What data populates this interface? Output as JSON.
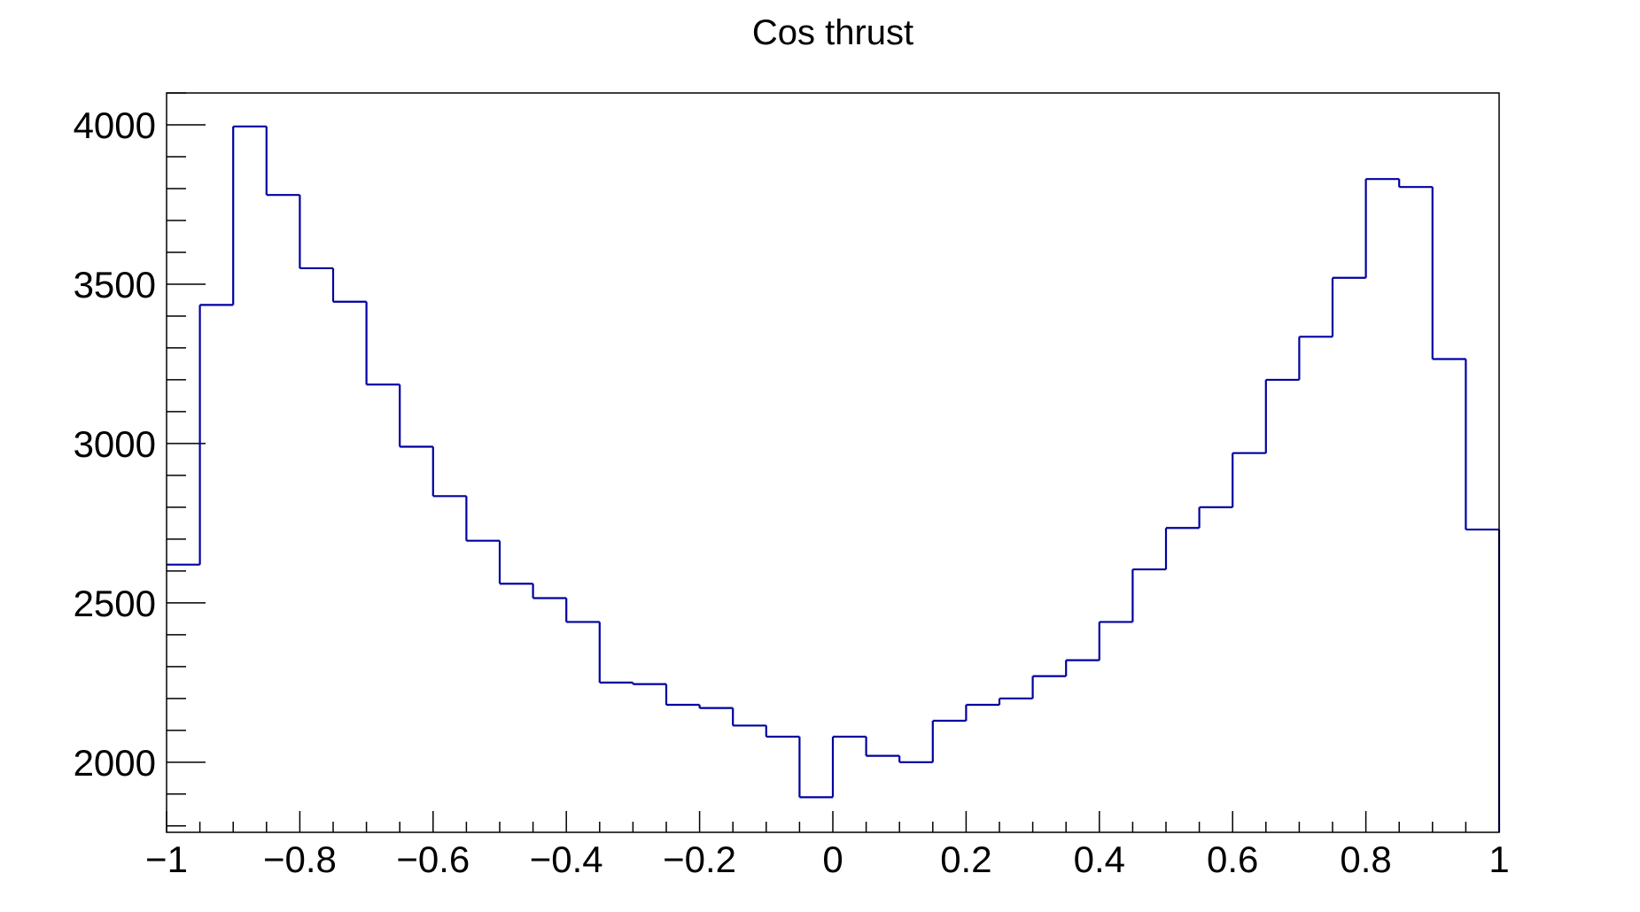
{
  "chart_data": {
    "type": "histogram",
    "title": "Cos thrust",
    "xlabel": "",
    "ylabel": "",
    "xlim": [
      -1,
      1
    ],
    "ylim": [
      1780,
      4100
    ],
    "bin_edges": [
      -1,
      -0.95,
      -0.9,
      -0.85,
      -0.8,
      -0.75,
      -0.7,
      -0.65,
      -0.6,
      -0.55,
      -0.5,
      -0.45,
      -0.4,
      -0.35,
      -0.3,
      -0.25,
      -0.2,
      -0.15,
      -0.1,
      -0.05,
      0,
      0.05,
      0.1,
      0.15,
      0.2,
      0.25,
      0.3,
      0.35,
      0.4,
      0.45,
      0.5,
      0.55,
      0.6,
      0.65,
      0.7,
      0.75,
      0.8,
      0.85,
      0.9,
      0.95,
      1
    ],
    "values": [
      2620,
      3435,
      3995,
      3780,
      3550,
      3445,
      3185,
      2990,
      2835,
      2695,
      2560,
      2515,
      2440,
      2250,
      2245,
      2180,
      2170,
      2115,
      2080,
      1890,
      2080,
      2020,
      2000,
      2130,
      2180,
      2200,
      2270,
      2320,
      2440,
      2605,
      2735,
      2800,
      2970,
      3200,
      3335,
      3520,
      3830,
      3805,
      3265,
      2730
    ],
    "x_tick_labels": [
      {
        "value": -1,
        "label": "−1"
      },
      {
        "value": -0.8,
        "label": "−0.8"
      },
      {
        "value": -0.6,
        "label": "−0.6"
      },
      {
        "value": -0.4,
        "label": "−0.4"
      },
      {
        "value": -0.2,
        "label": "−0.2"
      },
      {
        "value": 0,
        "label": "0"
      },
      {
        "value": 0.2,
        "label": "0.2"
      },
      {
        "value": 0.4,
        "label": "0.4"
      },
      {
        "value": 0.6,
        "label": "0.6"
      },
      {
        "value": 0.8,
        "label": "0.8"
      },
      {
        "value": 1,
        "label": "1"
      }
    ],
    "y_tick_labels": [
      {
        "value": 2000,
        "label": "2000"
      },
      {
        "value": 2500,
        "label": "2500"
      },
      {
        "value": 3000,
        "label": "3000"
      },
      {
        "value": 3500,
        "label": "3500"
      },
      {
        "value": 4000,
        "label": "4000"
      }
    ],
    "line_color": "#0000a0",
    "grid": false,
    "legend": "none"
  }
}
